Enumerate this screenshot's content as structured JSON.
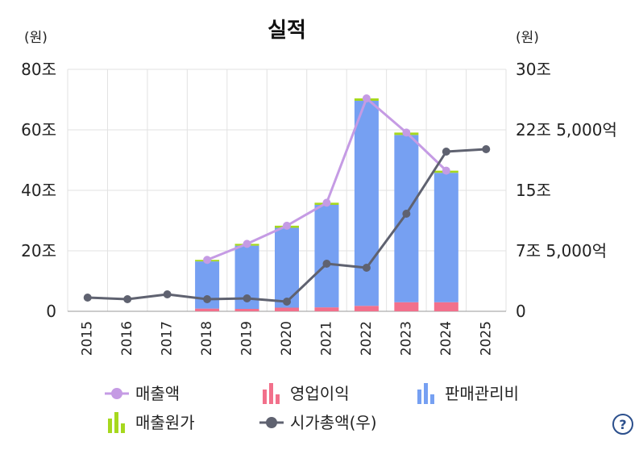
{
  "chart_data": {
    "type": "bar+line",
    "title": "실적",
    "left_unit": "(원)",
    "right_unit": "(원)",
    "left_ticks": [
      "0",
      "20조",
      "40조",
      "60조",
      "80조"
    ],
    "left_tick_values": [
      0,
      20,
      40,
      60,
      80
    ],
    "right_ticks": [
      "0",
      "7조 5,000억",
      "15조",
      "22조 5,000억",
      "30조"
    ],
    "right_tick_values": [
      0,
      7.5,
      15,
      22.5,
      30
    ],
    "ylim_left": [
      0,
      80
    ],
    "ylim_right": [
      0,
      30
    ],
    "categories": [
      "2015",
      "2016",
      "2017",
      "2018",
      "2019",
      "2020",
      "2021",
      "2022",
      "2023",
      "2024",
      "2025"
    ],
    "bars": {
      "operating_income": [
        null,
        null,
        null,
        0.9,
        0.8,
        1.2,
        1.3,
        1.8,
        3.0,
        3.0,
        null
      ],
      "sga": [
        null,
        null,
        null,
        15.6,
        20.9,
        26.4,
        33.9,
        67.8,
        55.3,
        42.8,
        null
      ],
      "cost_of_sales": [
        null,
        null,
        null,
        0.5,
        0.6,
        0.7,
        0.7,
        0.8,
        0.8,
        0.7,
        null
      ]
    },
    "lines": {
      "revenue": [
        null,
        null,
        null,
        17.0,
        22.3,
        28.3,
        35.9,
        70.4,
        59.1,
        46.5,
        null
      ],
      "market_cap": [
        1.7,
        1.5,
        2.1,
        1.5,
        1.6,
        1.2,
        5.9,
        5.4,
        12.1,
        19.8,
        20.1
      ]
    },
    "legend": [
      {
        "key": "revenue",
        "label": "매출액",
        "kind": "line"
      },
      {
        "key": "operating_income",
        "label": "영업이익",
        "kind": "bar"
      },
      {
        "key": "sga",
        "label": "판매관리비",
        "kind": "bar"
      },
      {
        "key": "cost_of_sales",
        "label": "매출원가",
        "kind": "bar"
      },
      {
        "key": "market_cap",
        "label": "시가총액(우)",
        "kind": "line"
      }
    ],
    "colors": {
      "revenue": "#c59be4",
      "operating_income": "#f2708b",
      "sga": "#76a0f2",
      "cost_of_sales": "#a6d81e",
      "market_cap": "#5f6270"
    }
  },
  "help": {
    "label": "?"
  }
}
